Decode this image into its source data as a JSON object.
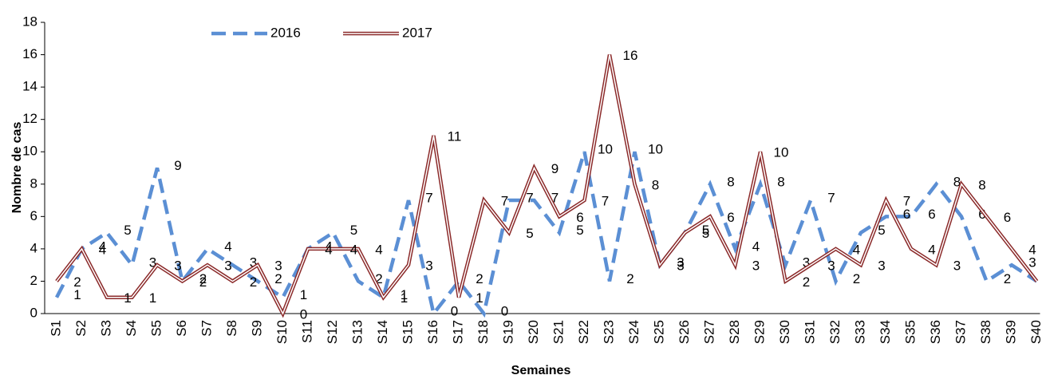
{
  "chart_data": {
    "type": "line",
    "x_label": "Semaines",
    "y_label": "Nombre de cas",
    "categories": [
      "S1",
      "S2",
      "S3",
      "S4",
      "S5",
      "S6",
      "S7",
      "S8",
      "S9",
      "S10",
      "S11",
      "S12",
      "S13",
      "S14",
      "S15",
      "S16",
      "S17",
      "S18",
      "S19",
      "S20",
      "S21",
      "S22",
      "S23",
      "S24",
      "S25",
      "S26",
      "S27",
      "S28",
      "S29",
      "S30",
      "S31",
      "S32",
      "S33",
      "S34",
      "S35",
      "S36",
      "S37",
      "S38",
      "S39",
      "S40"
    ],
    "series": [
      {
        "name": "2016",
        "color": "#5b8fd4",
        "style": "dashed",
        "values": [
          1,
          4,
          5,
          3,
          9,
          2,
          4,
          3,
          2,
          1,
          4,
          5,
          2,
          1,
          7,
          0,
          2,
          0,
          7,
          7,
          5,
          10,
          2,
          10,
          3,
          5,
          8,
          4,
          8,
          3,
          7,
          2,
          5,
          6,
          6,
          8,
          6,
          2,
          3,
          2
        ]
      },
      {
        "name": "2017",
        "color": "#8b2a2a",
        "style": "double",
        "values": [
          2,
          4,
          1,
          1,
          3,
          2,
          3,
          2,
          3,
          0,
          4,
          4,
          4,
          1,
          3,
          11,
          1,
          7,
          5,
          9,
          6,
          7,
          16,
          8,
          3,
          5,
          6,
          3,
          10,
          2,
          3,
          4,
          3,
          7,
          4,
          3,
          8,
          6,
          4,
          2
        ]
      }
    ],
    "ylim": [
      0,
      18
    ],
    "yticks": [
      0,
      2,
      4,
      6,
      8,
      10,
      12,
      14,
      16,
      18
    ],
    "legend": "top"
  }
}
